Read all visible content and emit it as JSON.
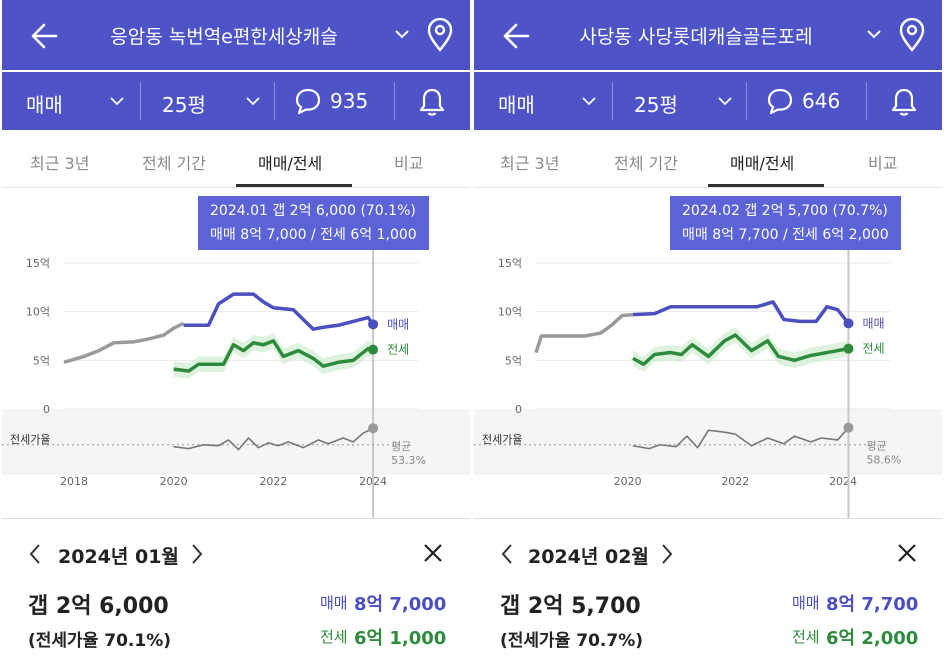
{
  "colors": {
    "header_bg": "#4e54c8",
    "sale": "#4b4fbf",
    "jeonse": "#2e8b3e",
    "history": "#9a9a9a",
    "tooltip_bg": "#5b63d6"
  },
  "icons": {
    "back": "back-arrow-icon",
    "dropdown": "chevron-down-icon",
    "location": "map-pin-icon",
    "comments": "speech-bubble-icon",
    "alerts": "bell-icon",
    "prev": "chevron-left-icon",
    "next": "chevron-right-icon",
    "close": "close-icon"
  },
  "panels": [
    {
      "title": "응암동 녹번역e편한세상캐슬",
      "deal_type": "매매",
      "size": "25평",
      "comment_count": "935",
      "tabs": [
        "최근 3년",
        "전체 기간",
        "매매/전세",
        "비교"
      ],
      "active_tab": 2,
      "tooltip": {
        "line1": "2024.01  갭 2억 6,000 (70.1%)",
        "line2": "매매 8억 7,000 / 전세 6억 1,000"
      },
      "detail": {
        "month": "2024년 01월",
        "gap": "갭 2억 6,000",
        "ratio": "(전세가율 70.1%)",
        "sale_label": "매매",
        "sale_value": "8억 7,000",
        "jeonse_label": "전세",
        "jeonse_value": "6억 1,000"
      },
      "chart_data": {
        "type": "line",
        "ylim": [
          0,
          15
        ],
        "y_ticks": [
          "15억",
          "10억",
          "5억",
          "0"
        ],
        "x_ticks": [
          "2018",
          "2020",
          "2022",
          "2024"
        ],
        "xlim": [
          2017.8,
          2024.5
        ],
        "sale_label": "매매",
        "jeonse_label": "전세",
        "ratio_label": "전세가율",
        "ratio_avg_label": "평균",
        "ratio_avg_value": "53.3%",
        "marker_x": 2024.0,
        "history": {
          "x": [
            2017.8,
            2018.2,
            2018.5,
            2018.8,
            2019.2,
            2019.5,
            2019.8,
            2020.0,
            2020.2
          ],
          "y": [
            4.8,
            5.4,
            6.0,
            6.8,
            6.9,
            7.2,
            7.6,
            8.3,
            8.8
          ]
        },
        "sale": {
          "x": [
            2020.2,
            2020.5,
            2020.7,
            2020.9,
            2021.2,
            2021.6,
            2021.8,
            2022.0,
            2022.4,
            2022.8,
            2023.0,
            2023.3,
            2023.6,
            2023.9,
            2024.0
          ],
          "y": [
            8.6,
            8.6,
            8.6,
            10.8,
            11.8,
            11.8,
            11.0,
            10.4,
            10.2,
            8.2,
            8.4,
            8.6,
            9.0,
            9.4,
            8.7
          ]
        },
        "jeonse": {
          "x": [
            2020.0,
            2020.3,
            2020.5,
            2020.8,
            2021.0,
            2021.2,
            2021.4,
            2021.6,
            2021.8,
            2022.0,
            2022.2,
            2022.5,
            2022.8,
            2023.0,
            2023.3,
            2023.6,
            2023.9,
            2024.0
          ],
          "y": [
            4.1,
            3.9,
            4.6,
            4.6,
            4.6,
            6.6,
            6.0,
            6.8,
            6.6,
            7.0,
            5.4,
            6.0,
            5.2,
            4.4,
            4.8,
            5.0,
            6.2,
            6.1
          ]
        },
        "ratio": {
          "x": [
            2020.0,
            2020.3,
            2020.6,
            2020.9,
            2021.1,
            2021.3,
            2021.5,
            2021.7,
            2021.9,
            2022.1,
            2022.3,
            2022.6,
            2022.9,
            2023.1,
            2023.4,
            2023.6,
            2023.8,
            2024.0
          ],
          "y": [
            51,
            49,
            53,
            52,
            58,
            48,
            60,
            50,
            55,
            52,
            56,
            50,
            58,
            54,
            60,
            56,
            65,
            70.1
          ]
        },
        "ratio_ylim": [
          30,
          90
        ]
      }
    },
    {
      "title": "사당동 사당롯데캐슬골든포레",
      "deal_type": "매매",
      "size": "25평",
      "comment_count": "646",
      "tabs": [
        "최근 3년",
        "전체 기간",
        "매매/전세",
        "비교"
      ],
      "active_tab": 2,
      "tooltip": {
        "line1": "2024.02  갭 2억 5,700 (70.7%)",
        "line2": "매매 8억 7,700 / 전세 6억 2,000"
      },
      "detail": {
        "month": "2024년 02월",
        "gap": "갭 2억 5,700",
        "ratio": "(전세가율 70.7%)",
        "sale_label": "매매",
        "sale_value": "8억 7,700",
        "jeonse_label": "전세",
        "jeonse_value": "6억 2,000"
      },
      "chart_data": {
        "type": "line",
        "ylim": [
          0,
          15
        ],
        "y_ticks": [
          "15억",
          "10억",
          "5억",
          "0"
        ],
        "x_ticks": [
          "2020",
          "2022",
          "2024"
        ],
        "xlim": [
          2018.3,
          2024.5
        ],
        "sale_label": "매매",
        "jeonse_label": "전세",
        "ratio_label": "전세가율",
        "ratio_avg_label": "평균",
        "ratio_avg_value": "58.6%",
        "marker_x": 2024.1,
        "history": {
          "x": [
            2018.3,
            2018.4,
            2018.8,
            2019.2,
            2019.5,
            2019.7,
            2019.9,
            2020.1
          ],
          "y": [
            5.8,
            7.5,
            7.5,
            7.5,
            7.8,
            8.6,
            9.6,
            9.7
          ]
        },
        "sale": {
          "x": [
            2020.1,
            2020.5,
            2020.8,
            2021.2,
            2021.6,
            2022.0,
            2022.4,
            2022.7,
            2022.9,
            2023.2,
            2023.5,
            2023.7,
            2023.9,
            2024.1
          ],
          "y": [
            9.7,
            9.8,
            10.5,
            10.5,
            10.5,
            10.5,
            10.5,
            11.0,
            9.2,
            9.0,
            9.0,
            10.5,
            10.2,
            8.8
          ]
        },
        "jeonse": {
          "x": [
            2020.1,
            2020.3,
            2020.5,
            2020.8,
            2021.0,
            2021.2,
            2021.5,
            2021.8,
            2022.0,
            2022.3,
            2022.6,
            2022.8,
            2023.1,
            2023.4,
            2023.7,
            2024.1
          ],
          "y": [
            5.2,
            4.6,
            5.6,
            5.8,
            5.6,
            6.6,
            5.4,
            7.0,
            7.6,
            6.0,
            7.0,
            5.4,
            5.0,
            5.5,
            5.8,
            6.2
          ]
        },
        "ratio": {
          "x": [
            2020.1,
            2020.4,
            2020.6,
            2020.9,
            2021.1,
            2021.3,
            2021.5,
            2021.8,
            2022.0,
            2022.3,
            2022.6,
            2022.9,
            2023.1,
            2023.4,
            2023.6,
            2023.9,
            2024.1
          ],
          "y": [
            52,
            49,
            53,
            51,
            62,
            50,
            68,
            66,
            64,
            52,
            60,
            54,
            62,
            56,
            60,
            58,
            70.7
          ]
        },
        "ratio_ylim": [
          30,
          90
        ]
      }
    }
  ]
}
